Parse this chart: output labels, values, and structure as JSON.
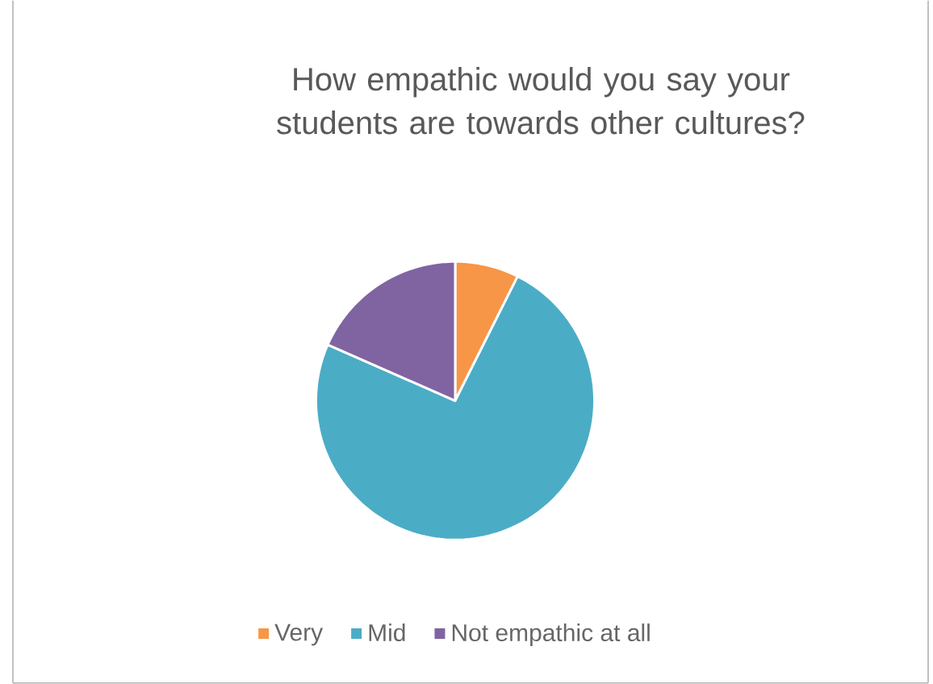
{
  "chart_data": {
    "type": "pie",
    "title": "How empathic would you say your students are towards other cultures?",
    "categories": [
      "Very",
      "Mid",
      "Not empathic at all"
    ],
    "values": [
      7.4,
      74.2,
      18.4
    ],
    "colors": [
      "#f79646",
      "#4bacc6",
      "#8064a2"
    ],
    "legend": "bottom"
  }
}
